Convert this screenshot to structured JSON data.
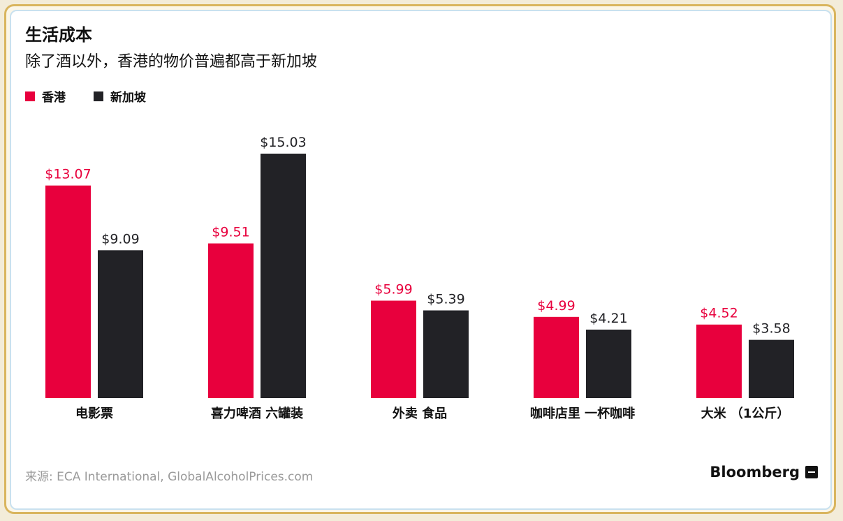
{
  "title": "生活成本",
  "subtitle": "除了酒以外，香港的物价普遍都高于新加坡",
  "legend": [
    {
      "name": "香港",
      "color": "#e8003d"
    },
    {
      "name": "新加坡",
      "color": "#222226"
    }
  ],
  "source": "来源:  ECA International, GlobalAlcoholPrices.com",
  "brand": "Bloomberg",
  "chart_data": {
    "type": "bar",
    "categories": [
      "电影票",
      "喜力啤酒  六罐装",
      "外卖  食品",
      "咖啡店里  一杯咖啡",
      "大米  （1公斤）"
    ],
    "series": [
      {
        "name": "香港",
        "color": "#e8003d",
        "label_color": "#e8003d",
        "values": [
          13.07,
          9.51,
          5.99,
          4.99,
          4.52
        ],
        "labels": [
          "$13.07",
          "$9.51",
          "$5.99",
          "$4.99",
          "$4.52"
        ]
      },
      {
        "name": "新加坡",
        "color": "#222226",
        "label_color": "#222226",
        "values": [
          9.09,
          15.03,
          5.39,
          4.21,
          3.58
        ],
        "labels": [
          "$9.09",
          "$15.03",
          "$5.39",
          "$4.21",
          "$3.58"
        ]
      }
    ],
    "ylim": [
      0,
      15.03
    ],
    "grid": false,
    "legend_position": "top-left"
  }
}
